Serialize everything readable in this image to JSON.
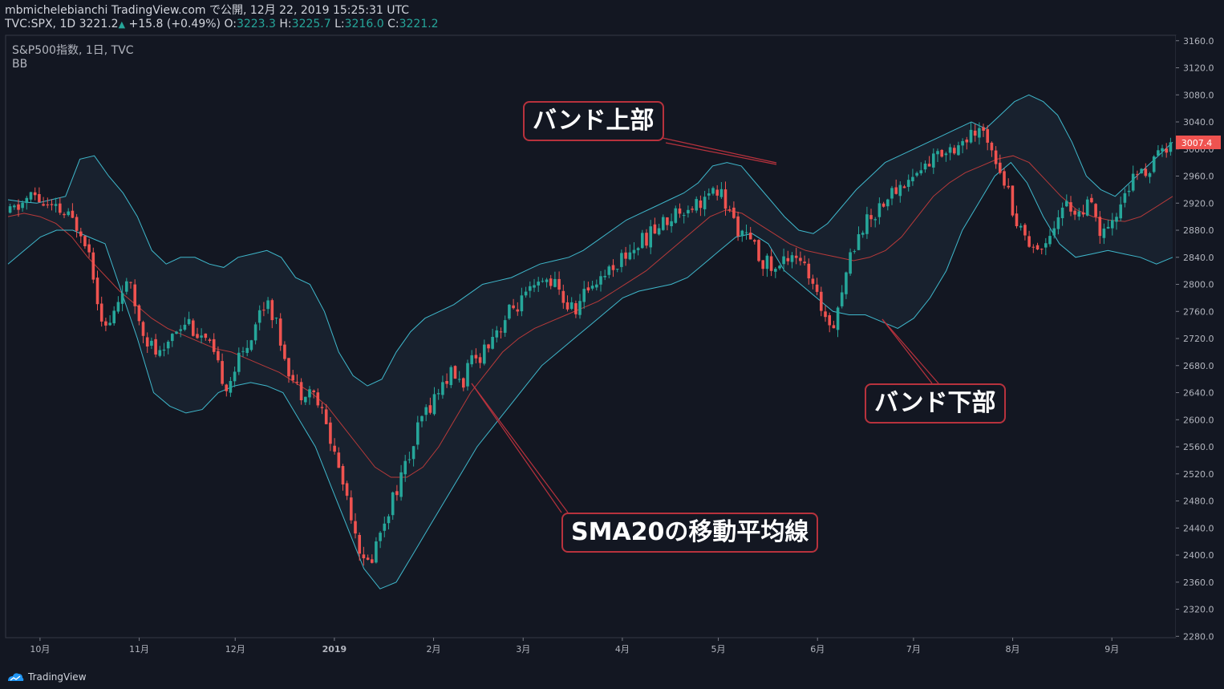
{
  "header": {
    "line1": "mbmichelebianchi TradingView.com で公開, 12月 22, 2019 15:25:31 UTC",
    "symbol": "TVC:SPX, 1D",
    "last": "3221.2",
    "change": "+15.8 (+0.49%)",
    "o_label": "O:",
    "o_value": "3223.3",
    "h_label": "H:",
    "h_value": "3225.7",
    "l_label": "L:",
    "l_value": "3216.0",
    "c_label": "C:",
    "c_value": "3221.2"
  },
  "legend": {
    "title": "S&P500指数, 1日, TVC",
    "indicator": "BB"
  },
  "annotations": {
    "upper": "バンド上部",
    "lower": "バンド下部",
    "sma": "SMA20の移動平均線"
  },
  "footer": {
    "brand": "TradingView"
  },
  "colors": {
    "background": "#131722",
    "up": "#26a69a",
    "down": "#ef5350",
    "band": "#3fb8cc",
    "sma": "#b83a3a",
    "annotation_border": "#b8323d",
    "price_label": "#ef5350"
  },
  "chart_data": {
    "type": "candlestick",
    "title": "S&P500指数, 1日, TVC",
    "indicator": "BB",
    "y_ticks": [
      "3160.0",
      "3120.0",
      "3080.0",
      "3040.0",
      "3000.0",
      "2960.0",
      "2920.0",
      "2880.0",
      "2840.0",
      "2800.0",
      "2760.0",
      "2720.0",
      "2680.0",
      "2640.0",
      "2600.0",
      "2560.0",
      "2520.0",
      "2480.0",
      "2440.0",
      "2400.0",
      "2360.0",
      "2320.0",
      "2280.0"
    ],
    "ylim": [
      2278,
      3168
    ],
    "x_ticks": [
      {
        "label": "10月",
        "date": "2018-10-01"
      },
      {
        "label": "11月",
        "date": "2018-11-01"
      },
      {
        "label": "12月",
        "date": "2018-12-01"
      },
      {
        "label": "2019",
        "date": "2019-01-01"
      },
      {
        "label": "2月",
        "date": "2019-02-01"
      },
      {
        "label": "3月",
        "date": "2019-03-01"
      },
      {
        "label": "4月",
        "date": "2019-04-01"
      },
      {
        "label": "5月",
        "date": "2019-05-01"
      },
      {
        "label": "6月",
        "date": "2019-06-01"
      },
      {
        "label": "7月",
        "date": "2019-07-01"
      },
      {
        "label": "8月",
        "date": "2019-08-01"
      },
      {
        "label": "9月",
        "date": "2019-09-01"
      }
    ],
    "current_price": "3007.4",
    "close_path": [
      2905,
      2914,
      2925,
      2932,
      2920,
      2910,
      2908,
      2900,
      2890,
      2880,
      2840,
      2770,
      2730,
      2760,
      2800,
      2790,
      2750,
      2720,
      2700,
      2690,
      2730,
      2740,
      2750,
      2730,
      2720,
      2700,
      2670,
      2650,
      2680,
      2700,
      2730,
      2760,
      2780,
      2740,
      2700,
      2660,
      2640,
      2650,
      2630,
      2600,
      2560,
      2520,
      2480,
      2430,
      2380,
      2400,
      2440,
      2470,
      2500,
      2530,
      2560,
      2600,
      2620,
      2640,
      2660,
      2670,
      2650,
      2680,
      2690,
      2710,
      2730,
      2740,
      2760,
      2770,
      2780,
      2790,
      2800,
      2810,
      2790,
      2770,
      2760,
      2780,
      2800,
      2810,
      2820,
      2830,
      2840,
      2850,
      2860,
      2870,
      2880,
      2890,
      2900,
      2910,
      2915,
      2920,
      2925,
      2930,
      2940,
      2910,
      2890,
      2870,
      2860,
      2840,
      2830,
      2820,
      2835,
      2850,
      2840,
      2810,
      2780,
      2760,
      2740,
      2780,
      2830,
      2870,
      2890,
      2900,
      2920,
      2930,
      2940,
      2950,
      2960,
      2970,
      2980,
      2990,
      3000,
      3005,
      3010,
      3015,
      3020,
      3025,
      3000,
      2970,
      2930,
      2890,
      2870,
      2860,
      2850,
      2880,
      2900,
      2920,
      2910,
      2900,
      2920,
      2880,
      2870,
      2890,
      2930,
      2950,
      2960,
      2970,
      2980,
      3000,
      3007
    ],
    "upper_band": [
      2925,
      2922,
      2920,
      2925,
      2930,
      2985,
      2990,
      2960,
      2935,
      2900,
      2850,
      2830,
      2840,
      2840,
      2830,
      2825,
      2840,
      2845,
      2850,
      2840,
      2810,
      2800,
      2760,
      2700,
      2665,
      2650,
      2660,
      2700,
      2730,
      2750,
      2760,
      2770,
      2785,
      2800,
      2805,
      2810,
      2820,
      2830,
      2835,
      2840,
      2850,
      2865,
      2880,
      2895,
      2905,
      2915,
      2925,
      2935,
      2950,
      2975,
      2980,
      2975,
      2950,
      2925,
      2900,
      2880,
      2875,
      2890,
      2915,
      2940,
      2960,
      2980,
      2990,
      3000,
      3010,
      3020,
      3030,
      3040,
      3030,
      3050,
      3070,
      3080,
      3070,
      3050,
      3010,
      2960,
      2940,
      2930,
      2950,
      2970,
      2990,
      3010
    ],
    "lower_band": [
      2830,
      2850,
      2870,
      2880,
      2880,
      2870,
      2860,
      2790,
      2720,
      2640,
      2620,
      2610,
      2615,
      2640,
      2650,
      2655,
      2650,
      2640,
      2600,
      2560,
      2500,
      2440,
      2380,
      2350,
      2360,
      2400,
      2440,
      2480,
      2520,
      2560,
      2590,
      2620,
      2650,
      2680,
      2700,
      2720,
      2740,
      2760,
      2780,
      2790,
      2795,
      2800,
      2810,
      2830,
      2850,
      2870,
      2875,
      2860,
      2820,
      2800,
      2780,
      2760,
      2755,
      2755,
      2745,
      2735,
      2750,
      2780,
      2820,
      2880,
      2920,
      2960,
      2980,
      2950,
      2900,
      2860,
      2840,
      2845,
      2850,
      2845,
      2840,
      2830,
      2840
    ],
    "sma20": [
      2900,
      2905,
      2900,
      2890,
      2870,
      2840,
      2815,
      2790,
      2770,
      2750,
      2735,
      2725,
      2715,
      2705,
      2700,
      2690,
      2680,
      2670,
      2655,
      2640,
      2620,
      2590,
      2560,
      2530,
      2515,
      2515,
      2530,
      2560,
      2600,
      2640,
      2670,
      2700,
      2720,
      2735,
      2745,
      2755,
      2765,
      2775,
      2790,
      2805,
      2820,
      2840,
      2860,
      2880,
      2900,
      2910,
      2905,
      2890,
      2875,
      2860,
      2850,
      2845,
      2840,
      2835,
      2840,
      2850,
      2870,
      2900,
      2930,
      2950,
      2965,
      2975,
      2985,
      2990,
      2980,
      2955,
      2930,
      2910,
      2900,
      2895,
      2893,
      2900,
      2915,
      2930
    ]
  }
}
